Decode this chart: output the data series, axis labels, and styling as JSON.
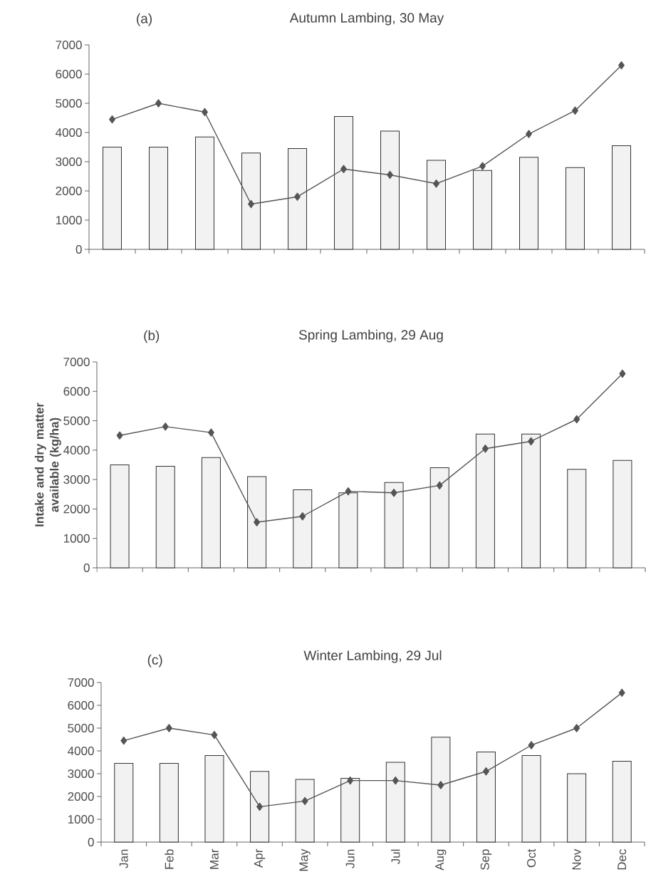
{
  "chart_data": [
    {
      "type": "bar",
      "title": "Autumn Lambing, 30 May",
      "annotations": [
        "(a)"
      ],
      "categories": [
        null,
        null,
        null,
        null,
        null,
        null,
        null,
        null,
        null,
        null,
        null,
        null
      ],
      "ylim": [
        0,
        7000
      ],
      "yticks": [
        0,
        1000,
        2000,
        3000,
        4000,
        5000,
        6000,
        7000
      ],
      "tick_labels": "y",
      "marker": "diamond",
      "series": [
        {
          "color": "#f2f2f2",
          "values": [
            3500,
            3500,
            3850,
            3300,
            3450,
            4550,
            4050,
            3050,
            2700,
            3150,
            2800,
            3550
          ]
        },
        {
          "type": "line",
          "color": "#555555",
          "values": [
            4450,
            5000,
            4700,
            1550,
            1800,
            2750,
            2550,
            2250,
            2850,
            3950,
            4750,
            6300
          ]
        }
      ]
    },
    {
      "type": "bar",
      "title": "Spring Lambing, 29 Aug",
      "annotations": [
        "(b)"
      ],
      "ylabel": "Intake and dry matter available (kg/ha)",
      "categories": [
        null,
        null,
        null,
        null,
        null,
        null,
        null,
        null,
        null,
        null,
        null,
        null
      ],
      "ylim": [
        0,
        7000
      ],
      "yticks": [
        0,
        1000,
        2000,
        3000,
        4000,
        5000,
        6000,
        7000
      ],
      "tick_labels": "y",
      "marker": "diamond",
      "series": [
        {
          "color": "#f2f2f2",
          "values": [
            3500,
            3450,
            3750,
            3100,
            2650,
            2550,
            2900,
            3400,
            4550,
            4550,
            3350,
            3650
          ]
        },
        {
          "type": "line",
          "color": "#555555",
          "values": [
            4500,
            4800,
            4600,
            1550,
            1750,
            2600,
            2550,
            2800,
            4050,
            4300,
            5050,
            6600
          ]
        }
      ]
    },
    {
      "type": "bar",
      "title": "Winter Lambing, 29 Jul",
      "annotations": [
        "(c)"
      ],
      "categories": [
        "Jan",
        "Feb",
        "Mar",
        "Apr",
        "May",
        "Jun",
        "Jul",
        "Aug",
        "Sep",
        "Oct",
        "Nov",
        "Dec"
      ],
      "ylim": [
        0,
        7000
      ],
      "yticks": [
        0,
        1000,
        2000,
        3000,
        4000,
        5000,
        6000,
        7000
      ],
      "marker": "diamond",
      "series": [
        {
          "color": "#f2f2f2",
          "values": [
            3450,
            3450,
            3800,
            3100,
            2750,
            2800,
            3500,
            4600,
            3950,
            3800,
            3000,
            3550
          ]
        },
        {
          "type": "line",
          "color": "#555555",
          "values": [
            4450,
            5000,
            4700,
            1550,
            1800,
            2700,
            2700,
            2500,
            3100,
            4250,
            5000,
            6550
          ]
        }
      ]
    }
  ]
}
